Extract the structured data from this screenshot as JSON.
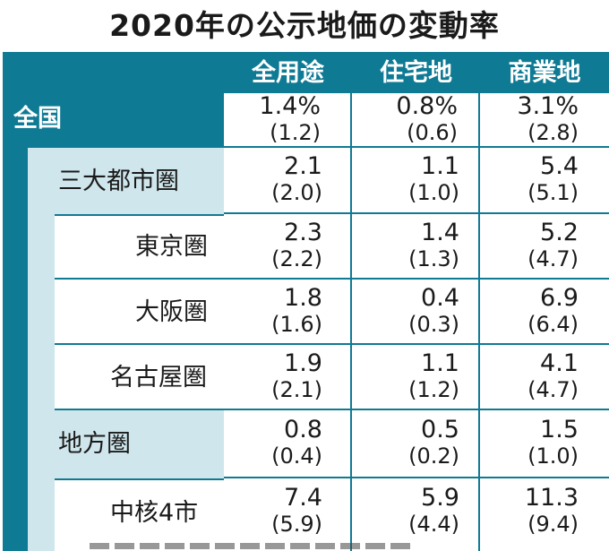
{
  "title": "2020年の公示地価の変動率",
  "columns": [
    "全用途",
    "住宅地",
    "商業地"
  ],
  "rows": [
    {
      "label": "全国",
      "values": [
        "1.4%",
        "0.8%",
        "3.1%"
      ],
      "prev": [
        "(1.2)",
        "(0.6)",
        "(2.8)"
      ]
    },
    {
      "label": "三大都市圏",
      "values": [
        "2.1",
        "1.1",
        "5.4"
      ],
      "prev": [
        "(2.0)",
        "(1.0)",
        "(5.1)"
      ]
    },
    {
      "label": "東京圏",
      "values": [
        "2.3",
        "1.4",
        "5.2"
      ],
      "prev": [
        "(2.2)",
        "(1.3)",
        "(4.7)"
      ]
    },
    {
      "label": "大阪圏",
      "values": [
        "1.8",
        "0.4",
        "6.9"
      ],
      "prev": [
        "(1.6)",
        "(0.3)",
        "(6.4)"
      ]
    },
    {
      "label": "名古屋圏",
      "values": [
        "1.9",
        "1.1",
        "4.1"
      ],
      "prev": [
        "(2.1)",
        "(1.2)",
        "(4.7)"
      ]
    },
    {
      "label": "地方圏",
      "values": [
        "0.8",
        "0.5",
        "1.5"
      ],
      "prev": [
        "(0.4)",
        "(0.2)",
        "(1.0)"
      ]
    },
    {
      "label": "中核4市",
      "values": [
        "7.4",
        "5.9",
        "11.3"
      ],
      "prev": [
        "(5.9)",
        "(4.4)",
        "(9.4)"
      ]
    }
  ],
  "colors": {
    "accent": "#0f7a94",
    "light": "#cfe6ec"
  }
}
